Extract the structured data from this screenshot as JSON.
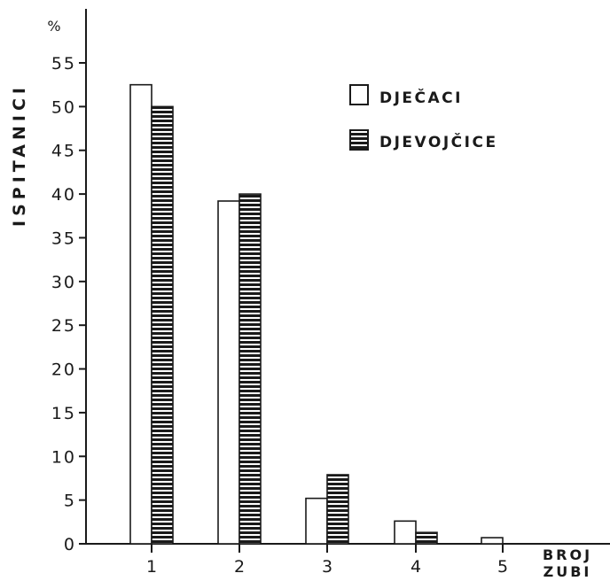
{
  "chart_data": {
    "type": "bar",
    "title": "",
    "ylabel": "ISPITANICI",
    "yunit": "%",
    "xlabel_line1": "BROJ",
    "xlabel_line2": "ZUBI",
    "categories": [
      "1",
      "2",
      "3",
      "4",
      "5"
    ],
    "ylim": [
      0,
      55
    ],
    "yticks": [
      "0",
      "5",
      "10",
      "15",
      "20",
      "25",
      "30",
      "35",
      "40",
      "45",
      "50",
      "55"
    ],
    "grid": false,
    "legend_position": "top-right",
    "series": [
      {
        "name": "DJEČACI",
        "pattern": "blank",
        "values": [
          52.5,
          39.2,
          5.2,
          2.6,
          0.7
        ]
      },
      {
        "name": "DJEVOJČICE",
        "pattern": "horizontal-stripes",
        "values": [
          50.0,
          40.0,
          7.9,
          1.3,
          0.0
        ]
      }
    ]
  },
  "colors": {
    "ink": "#1a1a1a",
    "background": "#ffffff"
  }
}
